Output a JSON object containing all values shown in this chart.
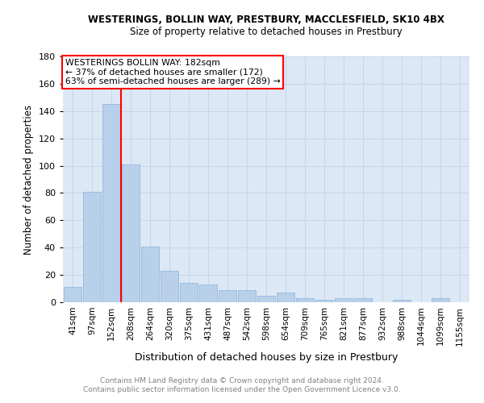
{
  "title": "WESTERINGS, BOLLIN WAY, PRESTBURY, MACCLESFIELD, SK10 4BX",
  "subtitle": "Size of property relative to detached houses in Prestbury",
  "xlabel": "Distribution of detached houses by size in Prestbury",
  "ylabel": "Number of detached properties",
  "categories": [
    "41sqm",
    "97sqm",
    "152sqm",
    "208sqm",
    "264sqm",
    "320sqm",
    "375sqm",
    "431sqm",
    "487sqm",
    "542sqm",
    "598sqm",
    "654sqm",
    "709sqm",
    "765sqm",
    "821sqm",
    "877sqm",
    "932sqm",
    "988sqm",
    "1044sqm",
    "1099sqm",
    "1155sqm"
  ],
  "values": [
    11,
    81,
    145,
    101,
    41,
    23,
    14,
    13,
    9,
    9,
    5,
    7,
    3,
    2,
    3,
    3,
    0,
    2,
    0,
    3,
    0
  ],
  "bar_color": "#b8d0ea",
  "bar_edge_color": "#8ab0d8",
  "grid_color": "#c8d4e8",
  "background_color": "#dce8f5",
  "red_line_x": 2.5,
  "annotation_title": "WESTERINGS BOLLIN WAY: 182sqm",
  "annotation_line1": "← 37% of detached houses are smaller (172)",
  "annotation_line2": "63% of semi-detached houses are larger (289) →",
  "footer_line1": "Contains HM Land Registry data © Crown copyright and database right 2024.",
  "footer_line2": "Contains public sector information licensed under the Open Government Licence v3.0.",
  "ylim": [
    0,
    180
  ],
  "yticks": [
    0,
    20,
    40,
    60,
    80,
    100,
    120,
    140,
    160,
    180
  ]
}
